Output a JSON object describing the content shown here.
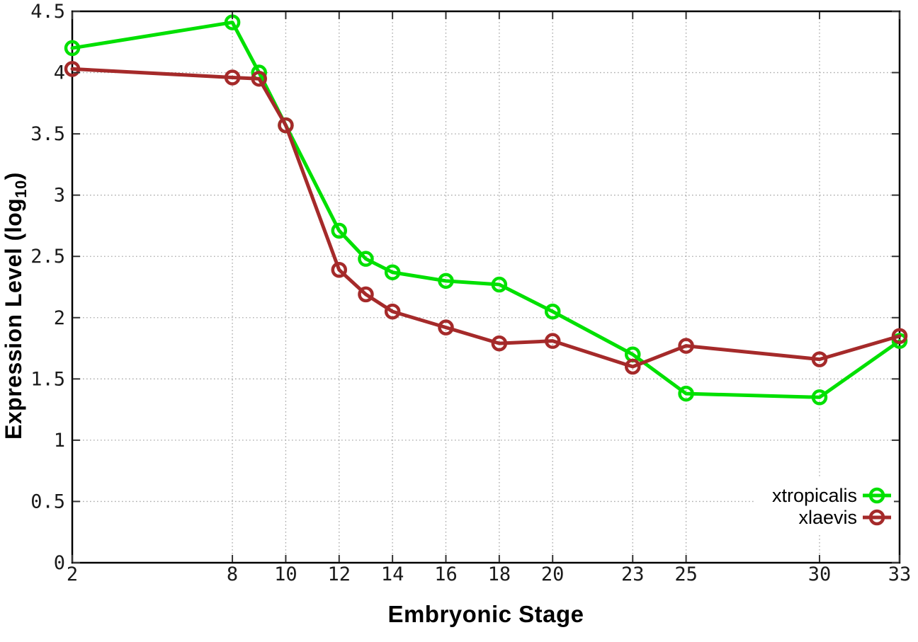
{
  "chart_data": {
    "type": "line",
    "title": "",
    "xlabel": "Embryonic Stage",
    "ylabel": {
      "prefix": "Expression Level (log",
      "subscript": "10",
      "suffix": ")"
    },
    "xlim": [
      2,
      33
    ],
    "ylim": [
      0,
      4.5
    ],
    "grid": true,
    "legend_position": "bottom-right-inside",
    "xticks": [
      {
        "v": 2,
        "label": "2"
      },
      {
        "v": 8,
        "label": "8"
      },
      {
        "v": 10,
        "label": "10"
      },
      {
        "v": 12,
        "label": "12"
      },
      {
        "v": 14,
        "label": "14"
      },
      {
        "v": 16,
        "label": "16"
      },
      {
        "v": 18,
        "label": "18"
      },
      {
        "v": 20,
        "label": "20"
      },
      {
        "v": 23,
        "label": "23"
      },
      {
        "v": 25,
        "label": "25"
      },
      {
        "v": 30,
        "label": "30"
      },
      {
        "v": 33,
        "label": "33"
      }
    ],
    "yticks": [
      {
        "v": 0,
        "label": "0"
      },
      {
        "v": 0.5,
        "label": "0.5"
      },
      {
        "v": 1,
        "label": "1"
      },
      {
        "v": 1.5,
        "label": "1.5"
      },
      {
        "v": 2,
        "label": "2"
      },
      {
        "v": 2.5,
        "label": "2.5"
      },
      {
        "v": 3,
        "label": "3"
      },
      {
        "v": 3.5,
        "label": "3.5"
      },
      {
        "v": 4,
        "label": "4"
      },
      {
        "v": 4.5,
        "label": "4.5"
      }
    ],
    "series": [
      {
        "name": "xtropicalis",
        "color": "#00e000",
        "marker": "open-circle",
        "points": [
          [
            2,
            4.2
          ],
          [
            8,
            4.41
          ],
          [
            9,
            4.0
          ],
          [
            10,
            3.57
          ],
          [
            12,
            2.71
          ],
          [
            13,
            2.48
          ],
          [
            14,
            2.37
          ],
          [
            16,
            2.3
          ],
          [
            18,
            2.27
          ],
          [
            20,
            2.05
          ],
          [
            23,
            1.7
          ],
          [
            25,
            1.38
          ],
          [
            30,
            1.35
          ],
          [
            33,
            1.81
          ]
        ]
      },
      {
        "name": "xlaevis",
        "color": "#a52a2a",
        "marker": "open-circle",
        "points": [
          [
            2,
            4.03
          ],
          [
            8,
            3.96
          ],
          [
            9,
            3.95
          ],
          [
            10,
            3.57
          ],
          [
            12,
            2.39
          ],
          [
            13,
            2.19
          ],
          [
            14,
            2.05
          ],
          [
            16,
            1.92
          ],
          [
            18,
            1.79
          ],
          [
            20,
            1.81
          ],
          [
            23,
            1.6
          ],
          [
            25,
            1.77
          ],
          [
            30,
            1.66
          ],
          [
            33,
            1.85
          ]
        ]
      }
    ],
    "style": {
      "background": "#ffffff",
      "grid_color": "#a9a9a9",
      "border_color": "#000000",
      "tick_color": "#333333",
      "tick_label_color": "#1a1a1a",
      "text_color": "#000000",
      "legend_box_color": "#ffffff"
    }
  }
}
